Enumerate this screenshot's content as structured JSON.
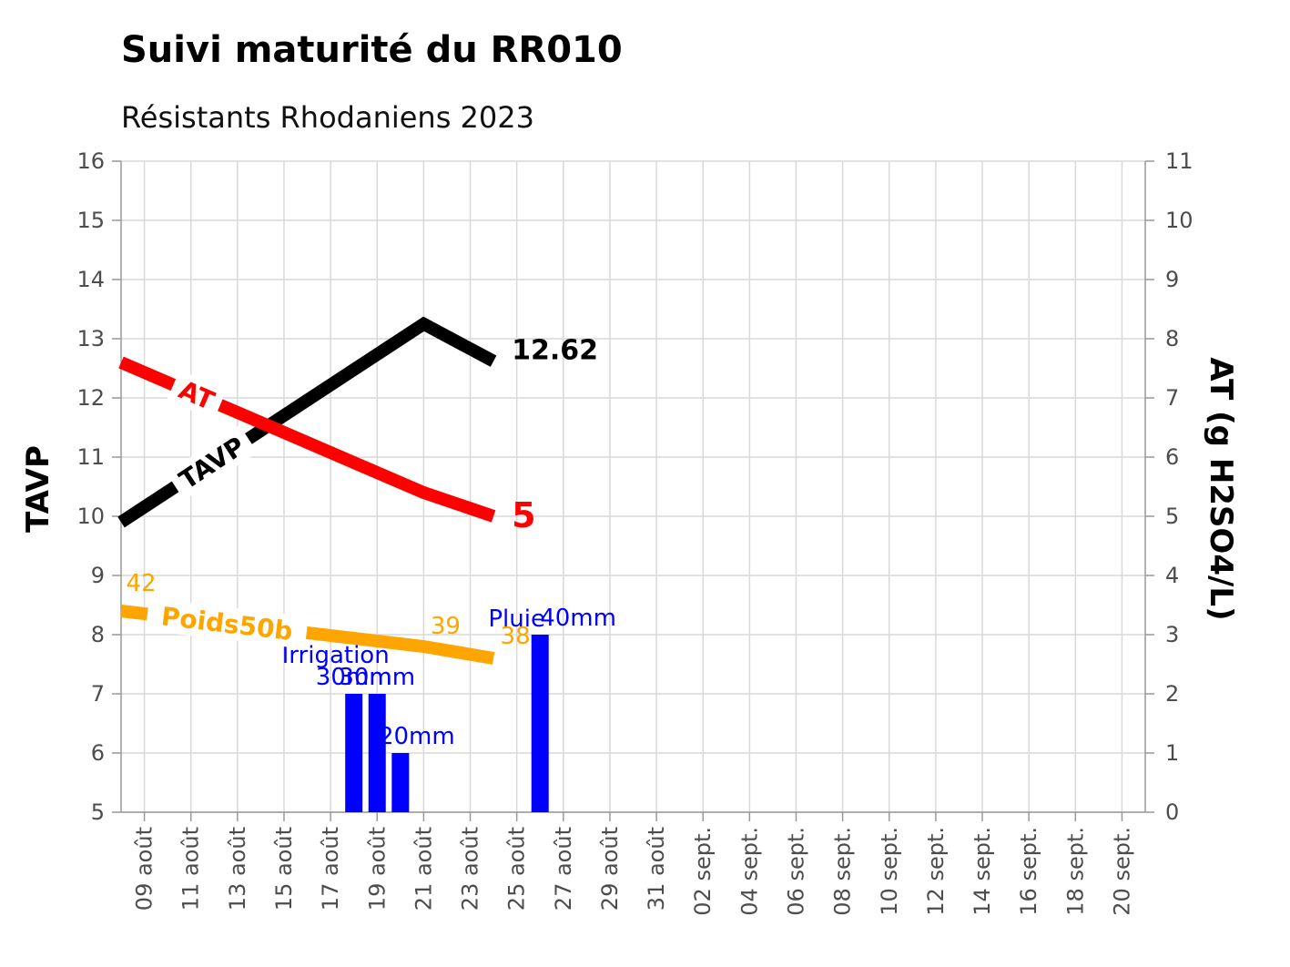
{
  "chart_data": {
    "type": "line",
    "title": "Suivi maturité du RR010",
    "subtitle": "Résistants Rhodaniens 2023",
    "ylabel": "TAVP",
    "y2label": "AT (g H2SO4/L)",
    "ylim": [
      5,
      16
    ],
    "y2lim": [
      0,
      11
    ],
    "xlim": [
      "2023-08-08",
      "2023-09-21"
    ],
    "grid": true,
    "x_tick_labels": [
      "09 août",
      "11 août",
      "13 août",
      "15 août",
      "17 août",
      "19 août",
      "21 août",
      "23 août",
      "25 août",
      "27 août",
      "29 août",
      "31 août",
      "02 sept.",
      "04 sept.",
      "06 sept.",
      "08 sept.",
      "10 sept.",
      "12 sept.",
      "14 sept.",
      "16 sept.",
      "18 sept.",
      "20 sept."
    ],
    "y_ticks": [
      5,
      6,
      7,
      8,
      9,
      10,
      11,
      12,
      13,
      14,
      15,
      16
    ],
    "y2_ticks": [
      0,
      1,
      2,
      3,
      4,
      5,
      6,
      7,
      8,
      9,
      10,
      11
    ],
    "series": [
      {
        "name": "TAVP",
        "axis": "left",
        "color": "#000000",
        "x": [
          "2023-08-08",
          "2023-08-21",
          "2023-08-24"
        ],
        "values": [
          9.9,
          13.25,
          12.62
        ],
        "end_label": "12.62"
      },
      {
        "name": "AT",
        "axis": "right",
        "color": "#ff0000",
        "x": [
          "2023-08-08",
          "2023-08-21",
          "2023-08-24"
        ],
        "values": [
          7.6,
          5.4,
          5.0
        ],
        "end_label": "5"
      },
      {
        "name": "Poids50b",
        "axis": "left",
        "color": "#ffa500",
        "x": [
          "2023-08-08",
          "2023-08-21",
          "2023-08-24"
        ],
        "values": [
          8.4,
          7.8,
          7.6
        ],
        "point_labels": [
          "42",
          "39",
          "38"
        ]
      }
    ],
    "bars": {
      "color": "#0000ff",
      "x": [
        "2023-08-18",
        "2023-08-19",
        "2023-08-20",
        "2023-08-26"
      ],
      "values": [
        2,
        2,
        1,
        3
      ],
      "labels": [
        "30mm",
        "30mm",
        "20mm",
        "40mm"
      ],
      "annotations": [
        {
          "text": "Irrigation",
          "x": "2023-08-18"
        },
        {
          "text": "Pluie",
          "x": "2023-08-25"
        }
      ]
    }
  }
}
